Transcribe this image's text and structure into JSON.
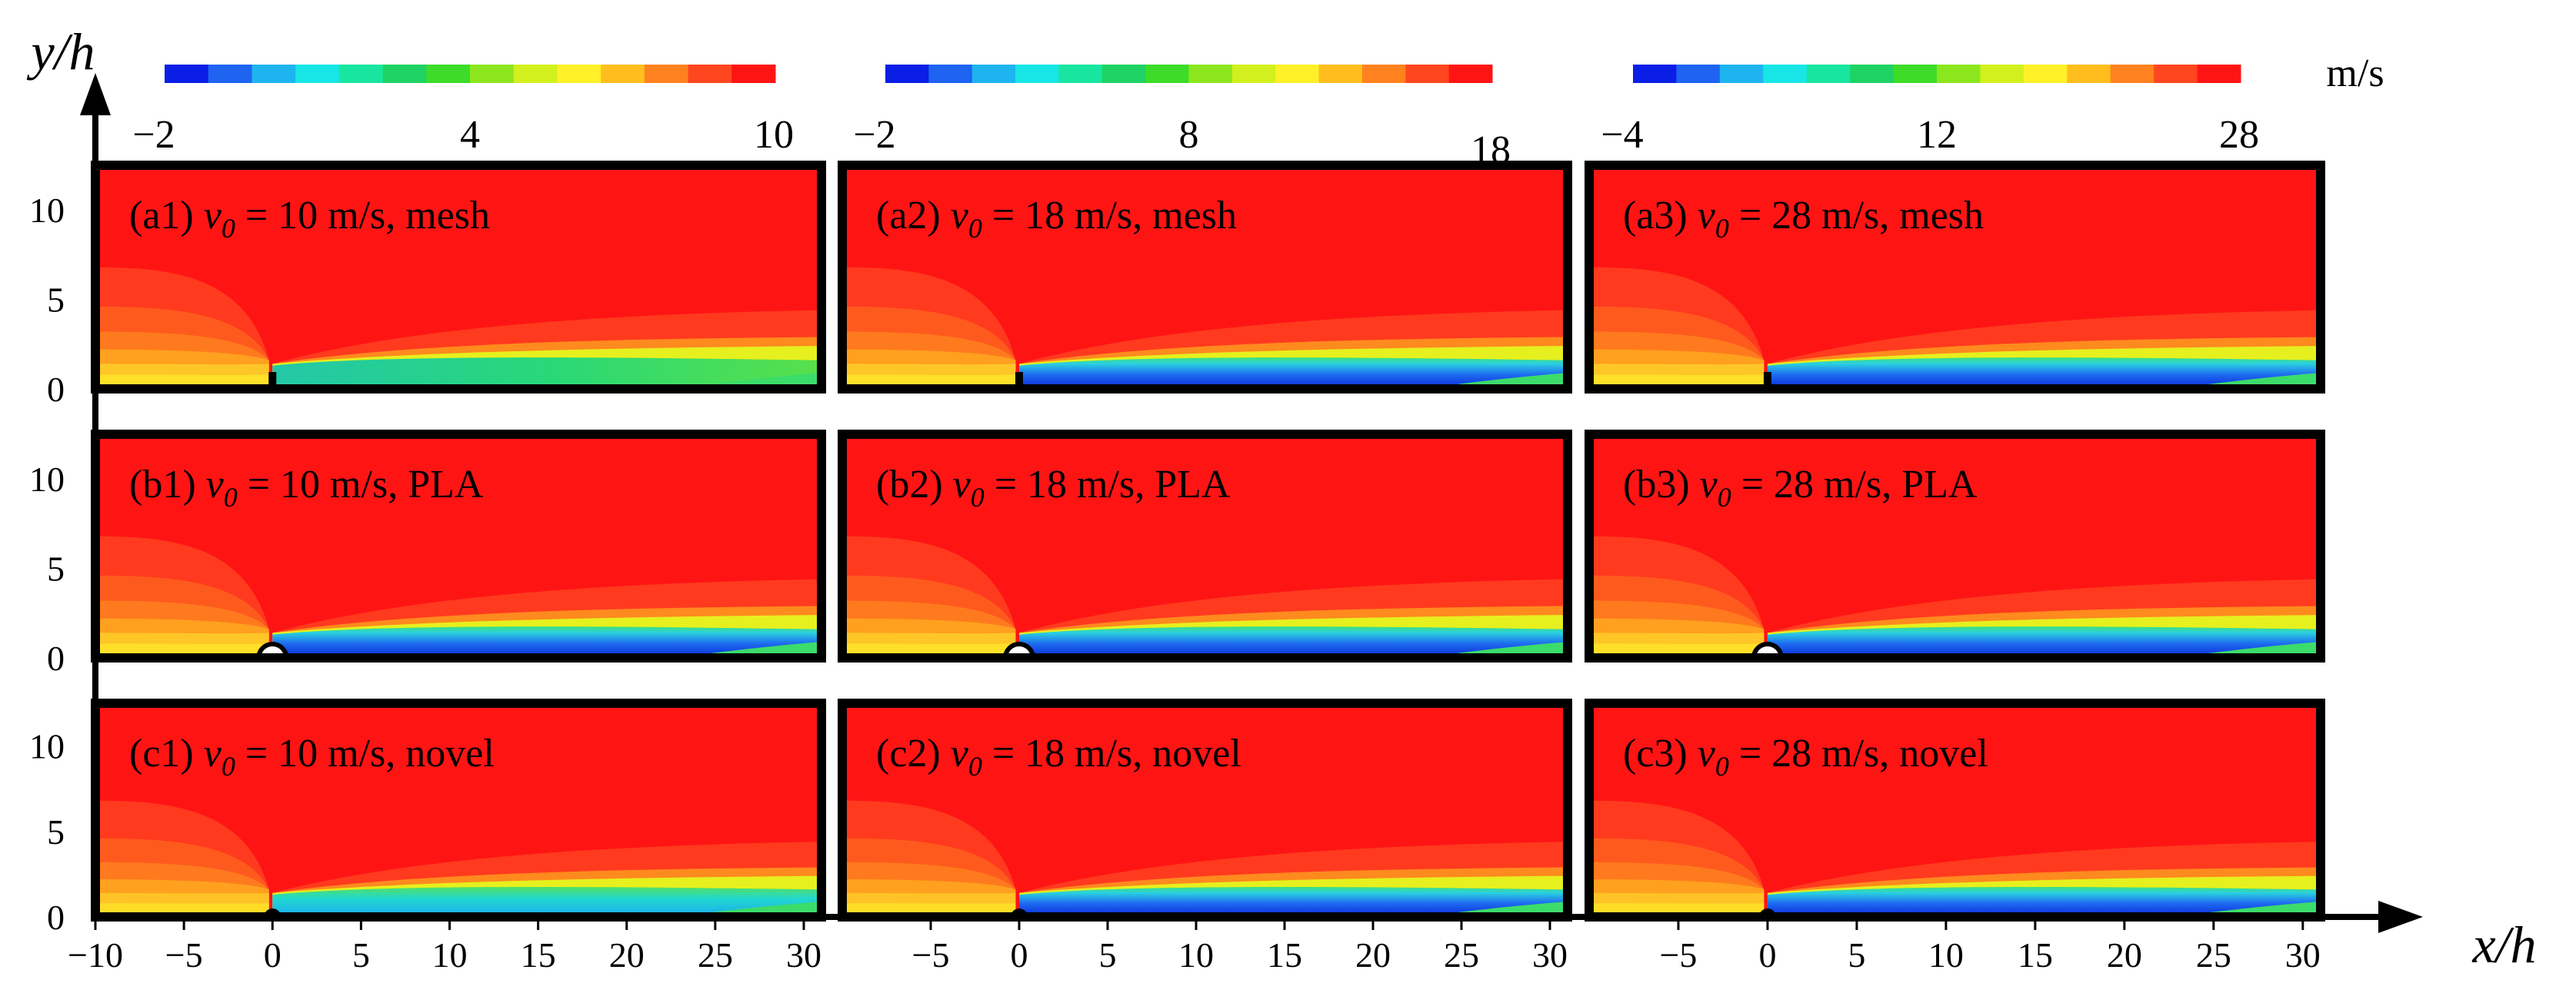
{
  "chart_data": {
    "type": "contour-grid",
    "xlabel": "x/h",
    "ylabel": "y/h",
    "unit": "m/s",
    "x_ticks": [
      -10,
      -5,
      0,
      5,
      10,
      15,
      20,
      25,
      30
    ],
    "y_ticks": [
      0,
      5,
      10
    ],
    "xlim": [
      -10,
      31
    ],
    "ylim": [
      0,
      12.5
    ],
    "colorbars": [
      {
        "min": -2,
        "max": 10,
        "tick_labels": [
          "−2",
          "4",
          "10"
        ]
      },
      {
        "min": -2,
        "max": 18,
        "tick_labels": [
          "−2",
          "8",
          "18"
        ]
      },
      {
        "min": -4,
        "max": 28,
        "tick_labels": [
          "−4",
          "12",
          "28"
        ]
      }
    ],
    "colormap": [
      "#0a1ee6",
      "#1e64f0",
      "#1eb4f0",
      "#18e6e6",
      "#18e6a0",
      "#1ed264",
      "#3cdc28",
      "#8ce61e",
      "#d2f01e",
      "#fff028",
      "#ffbe1e",
      "#ff821e",
      "#ff461e",
      "#ff1414"
    ],
    "panels": [
      {
        "row": 0,
        "col": 0,
        "label": "(a1)",
        "speed": "= 10 m/s, mesh",
        "case": "mesh"
      },
      {
        "row": 0,
        "col": 1,
        "label": "(a2)",
        "speed": "= 18 m/s, mesh",
        "case": "mesh"
      },
      {
        "row": 0,
        "col": 2,
        "label": "(a3)",
        "speed": "= 28 m/s, mesh",
        "case": "mesh"
      },
      {
        "row": 1,
        "col": 0,
        "label": "(b1)",
        "speed": "= 10 m/s, PLA",
        "case": "PLA"
      },
      {
        "row": 1,
        "col": 1,
        "label": "(b2)",
        "speed": "= 18 m/s, PLA",
        "case": "PLA"
      },
      {
        "row": 1,
        "col": 2,
        "label": "(b3)",
        "speed": "= 28 m/s, PLA",
        "case": "PLA"
      },
      {
        "row": 2,
        "col": 0,
        "label": "(c1)",
        "speed": "= 10 m/s, novel",
        "case": "novel"
      },
      {
        "row": 2,
        "col": 1,
        "label": "(c2)",
        "speed": "= 18 m/s, novel",
        "case": "novel"
      },
      {
        "row": 2,
        "col": 2,
        "label": "(c3)",
        "speed": "= 28 m/s, novel",
        "case": "novel"
      }
    ],
    "speed_symbol": "v",
    "speed_subscript": "0"
  }
}
